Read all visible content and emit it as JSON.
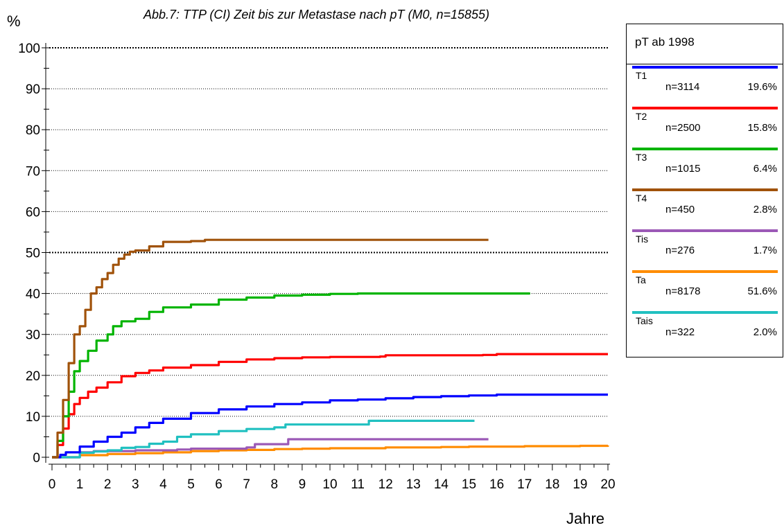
{
  "chart_data": {
    "type": "line",
    "title": "Abb.7: TTP (CI) Zeit bis zur Metastase nach pT (M0, n=15855)",
    "ylabel": "%",
    "xlabel": "Jahre",
    "xlim": [
      0,
      20
    ],
    "ylim": [
      0,
      100
    ],
    "x_ticks": [
      "0",
      "1",
      "2",
      "3",
      "4",
      "5",
      "6",
      "7",
      "8",
      "9",
      "10",
      "11",
      "12",
      "13",
      "14",
      "15",
      "16",
      "17",
      "18",
      "19",
      "20"
    ],
    "y_ticks": [
      "0",
      "10",
      "20",
      "30",
      "40",
      "50",
      "60",
      "70",
      "80",
      "90",
      "100"
    ],
    "grid": "horizontal dotted",
    "legend_position": "right",
    "legend_title": "pT ab 1998",
    "series": [
      {
        "name": "T1",
        "n": "n=3114",
        "pct": "19.6%",
        "color": "#0000ff",
        "points": [
          [
            0,
            0
          ],
          [
            0.3,
            0.6
          ],
          [
            0.5,
            1.2
          ],
          [
            1,
            2.6
          ],
          [
            1.5,
            3.8
          ],
          [
            2,
            5.0
          ],
          [
            2.5,
            6.0
          ],
          [
            3,
            7.3
          ],
          [
            3.5,
            8.4
          ],
          [
            4,
            9.4
          ],
          [
            5,
            10.8
          ],
          [
            6,
            11.7
          ],
          [
            7,
            12.4
          ],
          [
            8,
            13.0
          ],
          [
            9,
            13.4
          ],
          [
            10,
            13.9
          ],
          [
            11,
            14.1
          ],
          [
            12,
            14.4
          ],
          [
            13,
            14.7
          ],
          [
            14,
            14.9
          ],
          [
            15,
            15.1
          ],
          [
            16,
            15.3
          ],
          [
            20,
            15.3
          ]
        ]
      },
      {
        "name": "T2",
        "n": "n=2500",
        "pct": "15.8%",
        "color": "#ff0000",
        "points": [
          [
            0,
            0
          ],
          [
            0.2,
            3
          ],
          [
            0.4,
            7
          ],
          [
            0.6,
            10.5
          ],
          [
            0.8,
            13
          ],
          [
            1,
            14.5
          ],
          [
            1.3,
            16
          ],
          [
            1.6,
            17
          ],
          [
            2,
            18.3
          ],
          [
            2.5,
            19.8
          ],
          [
            3,
            20.6
          ],
          [
            3.5,
            21.2
          ],
          [
            4,
            21.9
          ],
          [
            5,
            22.5
          ],
          [
            6,
            23.3
          ],
          [
            7,
            23.9
          ],
          [
            8,
            24.2
          ],
          [
            9,
            24.4
          ],
          [
            10,
            24.5
          ],
          [
            11,
            24.5
          ],
          [
            11.8,
            24.6
          ],
          [
            12,
            24.9
          ],
          [
            15.5,
            25.0
          ],
          [
            16,
            25.2
          ],
          [
            20,
            25.2
          ]
        ]
      },
      {
        "name": "T3",
        "n": "n=1015",
        "pct": "6.4%",
        "color": "#00b400",
        "points": [
          [
            0,
            0
          ],
          [
            0.2,
            4
          ],
          [
            0.4,
            10
          ],
          [
            0.6,
            16
          ],
          [
            0.8,
            21
          ],
          [
            1,
            23.5
          ],
          [
            1.3,
            26
          ],
          [
            1.6,
            28.5
          ],
          [
            2,
            30
          ],
          [
            2.2,
            32
          ],
          [
            2.5,
            33.2
          ],
          [
            3,
            33.8
          ],
          [
            3.5,
            35.5
          ],
          [
            4,
            36.6
          ],
          [
            5,
            37.3
          ],
          [
            6,
            38.5
          ],
          [
            7,
            39
          ],
          [
            8,
            39.5
          ],
          [
            9,
            39.7
          ],
          [
            10,
            39.9
          ],
          [
            11,
            40
          ],
          [
            17.2,
            40
          ]
        ]
      },
      {
        "name": "T4",
        "n": "n=450",
        "pct": "2.8%",
        "color": "#a0520a",
        "points": [
          [
            0,
            0
          ],
          [
            0.2,
            6
          ],
          [
            0.4,
            14
          ],
          [
            0.6,
            23
          ],
          [
            0.8,
            30
          ],
          [
            1,
            32
          ],
          [
            1.2,
            36
          ],
          [
            1.4,
            40
          ],
          [
            1.6,
            41.5
          ],
          [
            1.8,
            43.5
          ],
          [
            2,
            45
          ],
          [
            2.2,
            47
          ],
          [
            2.4,
            48.5
          ],
          [
            2.6,
            49.5
          ],
          [
            2.8,
            50.2
          ],
          [
            3,
            50.5
          ],
          [
            3.5,
            51.5
          ],
          [
            4,
            52.6
          ],
          [
            5,
            52.8
          ],
          [
            5.5,
            53.1
          ],
          [
            15.7,
            53.1
          ]
        ]
      },
      {
        "name": "Tis",
        "n": "n=276",
        "pct": "1.7%",
        "color": "#9b59b6",
        "points": [
          [
            0,
            0
          ],
          [
            1,
            1.2
          ],
          [
            1.5,
            1.5
          ],
          [
            3,
            1.7
          ],
          [
            4.5,
            1.9
          ],
          [
            5,
            2.1
          ],
          [
            7,
            2.4
          ],
          [
            7.3,
            3.2
          ],
          [
            8.4,
            3.2
          ],
          [
            8.5,
            4.4
          ],
          [
            15.7,
            4.4
          ]
        ]
      },
      {
        "name": "Ta",
        "n": "n=8178",
        "pct": "51.6%",
        "color": "#ff8c00",
        "points": [
          [
            0,
            0
          ],
          [
            1,
            0.5
          ],
          [
            2,
            0.8
          ],
          [
            3,
            1.0
          ],
          [
            4,
            1.2
          ],
          [
            5,
            1.5
          ],
          [
            6,
            1.7
          ],
          [
            7,
            1.8
          ],
          [
            8,
            2.0
          ],
          [
            9,
            2.1
          ],
          [
            10,
            2.2
          ],
          [
            12,
            2.4
          ],
          [
            14,
            2.5
          ],
          [
            15,
            2.6
          ],
          [
            17,
            2.7
          ],
          [
            19,
            2.8
          ],
          [
            20,
            2.9
          ]
        ]
      },
      {
        "name": "Tais",
        "n": "n=322",
        "pct": "2.0%",
        "color": "#20c0c0",
        "points": [
          [
            0,
            0
          ],
          [
            1,
            1.1
          ],
          [
            1.5,
            1.4
          ],
          [
            2,
            1.7
          ],
          [
            2.5,
            2.3
          ],
          [
            3,
            2.5
          ],
          [
            3.5,
            3.3
          ],
          [
            4,
            3.8
          ],
          [
            4.5,
            5.0
          ],
          [
            5,
            5.6
          ],
          [
            6,
            6.4
          ],
          [
            7,
            6.9
          ],
          [
            8,
            7.3
          ],
          [
            8.4,
            8.0
          ],
          [
            11.3,
            8.0
          ],
          [
            11.4,
            8.9
          ],
          [
            15.2,
            8.9
          ]
        ]
      }
    ]
  }
}
